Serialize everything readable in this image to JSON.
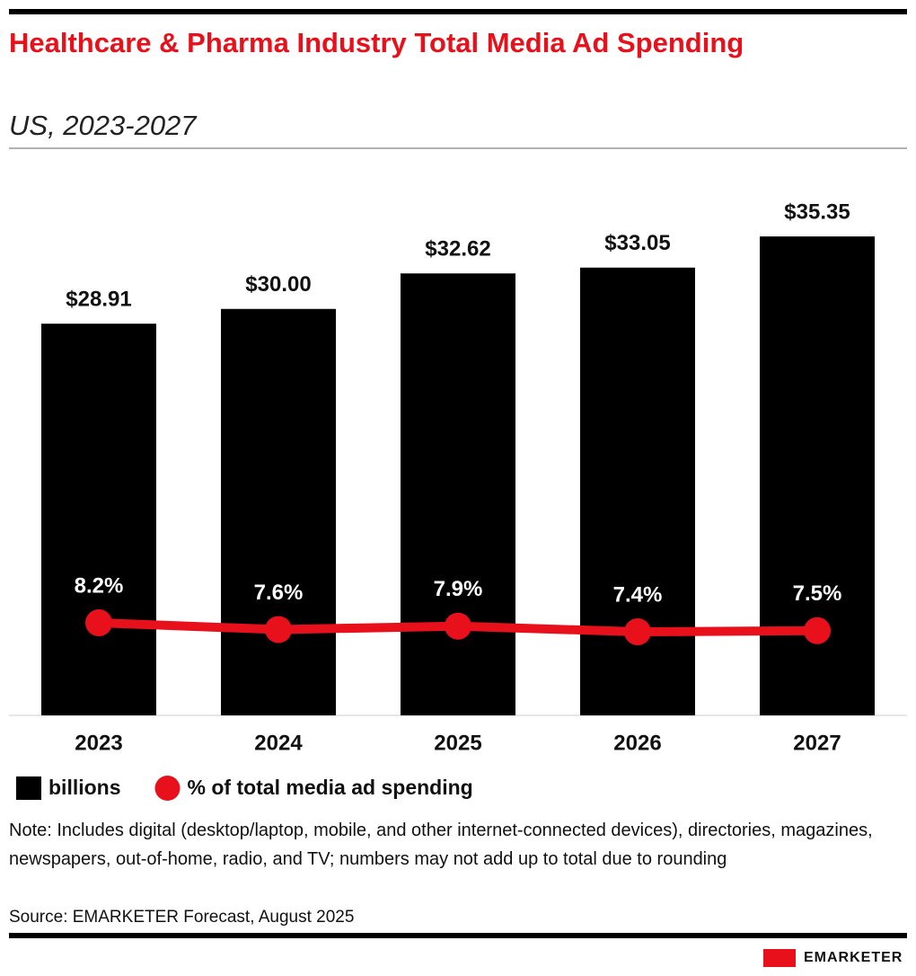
{
  "chart_data": {
    "type": "bar",
    "title": "Healthcare & Pharma Industry Total Media Ad Spending",
    "subtitle": "US, 2023-2027",
    "categories": [
      "2023",
      "2024",
      "2025",
      "2026",
      "2027"
    ],
    "series": [
      {
        "name": "billions",
        "type": "bar",
        "color": "#000000",
        "values": [
          28.91,
          30.0,
          32.62,
          33.05,
          35.35
        ],
        "value_labels": [
          "$28.91",
          "$30.00",
          "$32.62",
          "$33.05",
          "$35.35"
        ]
      },
      {
        "name": "% of total media ad spending",
        "type": "line",
        "axis": "y2",
        "color": "#e8101a",
        "values": [
          8.2,
          7.6,
          7.9,
          7.4,
          7.5
        ],
        "value_labels": [
          "8.2%",
          "7.6%",
          "7.9%",
          "7.4%",
          "7.5%"
        ]
      }
    ],
    "ylim": [
      0,
      40
    ],
    "y2lim": [
      0,
      48
    ],
    "note": "Note: Includes digital (desktop/laptop, mobile, and other internet-connected devices), directories, magazines, newspapers, out-of-home, radio, and TV; numbers may not add up to total due to rounding",
    "source": "Source: EMARKETER Forecast, August 2025",
    "brand": "EMARKETER"
  }
}
